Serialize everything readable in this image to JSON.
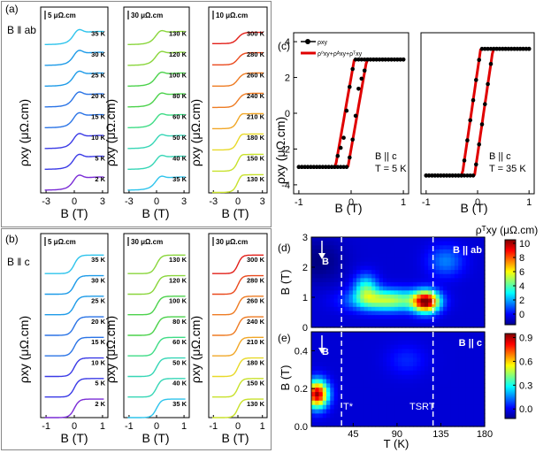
{
  "figure": {
    "panel_labels": [
      "(a)",
      "(b)",
      "(c)",
      "(d)",
      "(e)"
    ],
    "orientation_labels": {
      "a": "B ‖ ab",
      "b": "B ‖ c"
    }
  },
  "colors": {
    "temp_scale": [
      "#7a2cd6",
      "#3b3be6",
      "#2b74e6",
      "#1e9be8",
      "#2fc4ec",
      "#37d6b6",
      "#3fdc86",
      "#4cd24c",
      "#8ad63c",
      "#c8e12c",
      "#e8d92a",
      "#f1a728",
      "#ee7c24",
      "#ea4a1e",
      "#e2201a"
    ],
    "fit_red": "#e00000",
    "data_black": "#000000",
    "guide_line": "#ffffff"
  },
  "chart_data": [
    {
      "panel": "(a)",
      "type": "line",
      "ylabel": "ρxy (μΩ.cm)",
      "xlabel": "B (T)",
      "x_ticks": [
        "-3",
        "0",
        "3"
      ],
      "columns": [
        {
          "scale_bar": "5 μΩ.cm",
          "temperatures": [
            "35 K",
            "30 K",
            "25 K",
            "20 K",
            "15 K",
            "10 K",
            "5 K",
            "2 K"
          ]
        },
        {
          "scale_bar": "30 μΩ.cm",
          "temperatures": [
            "130 K",
            "120 K",
            "100 K",
            "80 K",
            "60 K",
            "50 K",
            "40 K",
            "35 K"
          ]
        },
        {
          "scale_bar": "10 μΩ.cm",
          "temperatures": [
            "300 K",
            "280 K",
            "260 K",
            "240 K",
            "210 K",
            "180 K",
            "150 K",
            "130 K"
          ]
        }
      ]
    },
    {
      "panel": "(b)",
      "type": "line",
      "ylabel": "ρxy (μΩ.cm)",
      "xlabel": "B (T)",
      "x_ticks": [
        "-1",
        "0",
        "1"
      ],
      "columns": [
        {
          "scale_bar": "5 μΩ.cm",
          "temperatures": [
            "35 K",
            "30 K",
            "25 K",
            "20 K",
            "15 K",
            "10 K",
            "5 K",
            "2 K"
          ]
        },
        {
          "scale_bar": "30 μΩ.cm",
          "temperatures": [
            "130 K",
            "120 K",
            "100 K",
            "80 K",
            "60 K",
            "50 K",
            "40 K",
            "35 K"
          ]
        },
        {
          "scale_bar": "30 μΩ.cm",
          "temperatures": [
            "300 K",
            "280 K",
            "260 K",
            "240 K",
            "210 K",
            "180 K",
            "150 K",
            "130 K"
          ]
        }
      ]
    },
    {
      "panel": "(c)",
      "type": "scatter",
      "ylabel": "ρxy (μΩ.cm)",
      "xlabel": "B (T)",
      "x_ticks": [
        "-1",
        "0",
        "1"
      ],
      "y_ticks": [
        "-4",
        "-2",
        "0",
        "2",
        "4"
      ],
      "ylim": [
        -4.5,
        4.5
      ],
      "xlim": [
        -1.1,
        1.1
      ],
      "legend": [
        "ρxy",
        "ρ⁰xy+ρᴬxy+ρᵀxy"
      ],
      "subplots": [
        {
          "annotation": [
            "B || c",
            "T = 5 K"
          ],
          "saturation": 3.0,
          "neg_saturation": -3.0,
          "hump_peak": 4.0,
          "hump_dip": -4.0
        },
        {
          "annotation": [
            "B || c",
            "T = 35 K"
          ],
          "saturation": 9.2,
          "neg_saturation": -8.9
        }
      ]
    },
    {
      "panel": "(d)",
      "type": "heatmap",
      "title": "B || ab",
      "ylabel": "B (T)",
      "y_ticks": [
        "0",
        "1",
        "2",
        "3"
      ],
      "ylim": [
        0,
        3
      ],
      "xlim": [
        2,
        180
      ],
      "colorbar_label": "ρᵀxy (μΩ.cm)",
      "colorbar_ticks": [
        "0",
        "2",
        "4",
        "6",
        "8",
        "10"
      ],
      "colorbar_range": [
        -1.5,
        10.5
      ],
      "arrow_label": "B",
      "peaks": [
        {
          "T": 120,
          "B": 0.85,
          "value": 10
        },
        {
          "T": 75,
          "B": 0.9,
          "value": 6
        }
      ]
    },
    {
      "panel": "(e)",
      "type": "heatmap",
      "title": "B || c",
      "ylabel": "B (T)",
      "xlabel": "T (K)",
      "y_ticks": [
        "0.0",
        "0.2",
        "0.4"
      ],
      "ylim": [
        0,
        0.5
      ],
      "x_ticks": [
        "45",
        "90",
        "135",
        "180"
      ],
      "xlim": [
        2,
        180
      ],
      "colorbar_ticks": [
        "0.0",
        "0.3",
        "0.6",
        "0.9"
      ],
      "colorbar_range": [
        -0.12,
        0.95
      ],
      "arrow_label": "B",
      "markers": [
        "T*",
        "TSRT"
      ],
      "marker_T": [
        33,
        127
      ],
      "peaks": [
        {
          "T": 10,
          "B": 0.17,
          "value": 0.9
        }
      ]
    }
  ]
}
